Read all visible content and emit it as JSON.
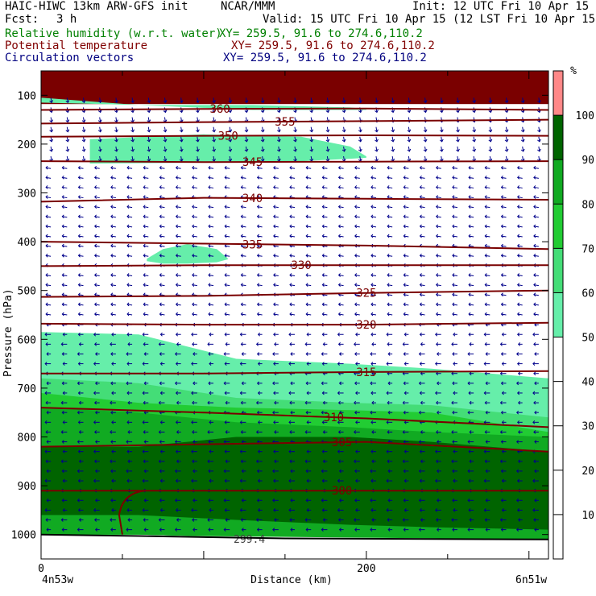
{
  "header": {
    "title": "HAIC-HIWC 13km ARW-GFS init",
    "org": "NCAR/MMM",
    "init": "Init: 12 UTC Fri 10 Apr 15",
    "fcst_label": "Fcst:",
    "fcst_value": "3 h",
    "valid": "Valid: 15 UTC Fri 10 Apr 15 (12 LST Fri 10 Apr 15)",
    "fields": [
      {
        "label": "Relative humidity (w.r.t. water)",
        "xy": "XY= 259.5, 91.6 to 274.6,110.2",
        "color": "#008000"
      },
      {
        "label": "Potential temperature",
        "xy": "XY= 259.5, 91.6 to 274.6,110.2",
        "color": "#800000"
      },
      {
        "label": "Circulation vectors",
        "xy": "XY= 259.5, 91.6 to 274.6,110.2",
        "color": "#000080"
      }
    ]
  },
  "chart_data": {
    "type": "heatmap",
    "ylabel": "Pressure (hPa)",
    "xlabel": "Distance (km)",
    "ylim": [
      1050,
      50
    ],
    "xlim": [
      0,
      312
    ],
    "y_ticks": [
      "100",
      "200",
      "300",
      "400",
      "500",
      "600",
      "700",
      "800",
      "900",
      "1000"
    ],
    "x_ticks": [
      "0",
      "200"
    ],
    "x_ticks_values": [
      0,
      200
    ],
    "left_endpoint": "4n53w",
    "right_endpoint": "6n51w",
    "colorbar": {
      "unit": "%",
      "labels": [
        "10",
        "20",
        "30",
        "40",
        "50",
        "60",
        "70",
        "80",
        "90",
        "100"
      ],
      "bins": [
        {
          "from": 50,
          "to": 60,
          "color": "#66eeaa"
        },
        {
          "from": 60,
          "to": 70,
          "color": "#44dd77"
        },
        {
          "from": 70,
          "to": 80,
          "color": "#22cc33"
        },
        {
          "from": 80,
          "to": 90,
          "color": "#11aa22"
        },
        {
          "from": 90,
          "to": 100,
          "color": "#006400"
        },
        {
          "from": 100,
          "to": 110,
          "color": "#ff8888"
        }
      ]
    },
    "theta_contours": [
      {
        "label": "360",
        "p": [
          130,
          128,
          127,
          130
        ]
      },
      {
        "label": "355",
        "p": [
          158,
          155,
          153,
          150
        ]
      },
      {
        "label": "350",
        "p": [
          185,
          183,
          182,
          183
        ]
      },
      {
        "label": "345",
        "p": [
          235,
          237,
          236,
          235
        ]
      },
      {
        "label": "340",
        "p": [
          318,
          310,
          312,
          314
        ]
      },
      {
        "label": "335",
        "p": [
          400,
          404,
          408,
          415
        ]
      },
      {
        "label": "330",
        "p": [
          450,
          448,
          448,
          448
        ]
      },
      {
        "label": "325",
        "p": [
          513,
          511,
          505,
          500
        ]
      },
      {
        "label": "320",
        "p": [
          568,
          570,
          570,
          566
        ]
      },
      {
        "label": "315",
        "p": [
          670,
          670,
          667,
          665
        ]
      },
      {
        "label": "310",
        "p": [
          740,
          750,
          762,
          780
        ]
      },
      {
        "label": "305",
        "p": [
          820,
          815,
          810,
          830
        ]
      },
      {
        "label": "300",
        "p": [
          910,
          910,
          910,
          910
        ]
      },
      {
        "label": "299.4"
      }
    ],
    "rh_bands": [
      {
        "rh_min": 50,
        "x": [
          0,
          60,
          120,
          190,
          240,
          312
        ],
        "p_top": [
          585,
          590,
          640,
          650,
          660,
          680
        ],
        "p_bot": [
          1000,
          1000,
          1005,
          1010,
          1010,
          1010
        ]
      },
      {
        "rh_min": 60,
        "x": [
          0,
          60,
          120,
          190,
          240,
          312
        ],
        "p_top": [
          680,
          690,
          720,
          730,
          735,
          760
        ],
        "p_bot": [
          1000,
          1000,
          1005,
          1010,
          1010,
          1010
        ]
      },
      {
        "rh_min": 70,
        "x": [
          0,
          60,
          120,
          190,
          240,
          312
        ],
        "p_top": [
          710,
          730,
          740,
          745,
          750,
          790
        ],
        "p_bot": [
          1000,
          1000,
          1005,
          1010,
          1010,
          1010
        ]
      },
      {
        "rh_min": 80,
        "x": [
          0,
          60,
          120,
          190,
          240,
          312
        ],
        "p_top": [
          740,
          750,
          770,
          780,
          790,
          800
        ],
        "p_bot": [
          1000,
          1000,
          1005,
          1010,
          1010,
          1010
        ]
      },
      {
        "rh_min": 90,
        "x": [
          0,
          60,
          120,
          190,
          240,
          312
        ],
        "p_top": [
          820,
          820,
          800,
          800,
          810,
          830
        ],
        "p_bot": [
          960,
          960,
          970,
          980,
          985,
          990
        ]
      },
      {
        "rh_min": 50,
        "x": [
          0,
          60,
          130,
          190,
          200
        ],
        "p_top": [
          105,
          120,
          120,
          125,
          128
        ],
        "p_bot": [
          115,
          120,
          130,
          130,
          130
        ]
      },
      {
        "rh_min": 50,
        "x": [
          30,
          100,
          160,
          190,
          200
        ],
        "p_top": [
          190,
          180,
          185,
          205,
          225
        ],
        "p_bot": [
          240,
          238,
          235,
          230,
          228
        ]
      },
      {
        "rh_min": 50,
        "x": [
          65,
          75,
          90,
          108,
          115
        ],
        "p_top": [
          435,
          415,
          405,
          415,
          435
        ],
        "p_bot": [
          440,
          445,
          445,
          442,
          436
        ]
      }
    ]
  }
}
